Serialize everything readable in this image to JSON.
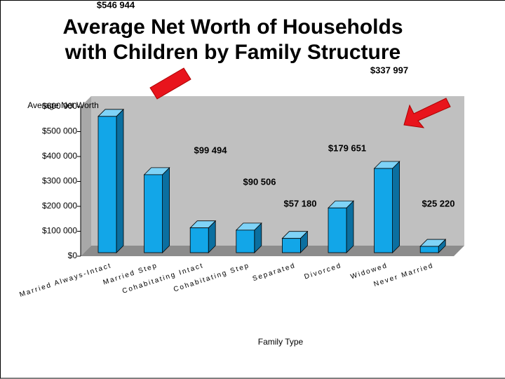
{
  "chart_data": {
    "type": "bar3d",
    "title": [
      "Average Net Worth of Households",
      "with Children by Family Structure"
    ],
    "y_label": "Average Net Worth",
    "x_label": "Family Type",
    "categories": [
      "Married Always-Intact",
      "Married Step",
      "Cohabitating Intact",
      "Cohabitating Step",
      "Separated",
      "Divorced",
      "Widowed",
      "Never Married"
    ],
    "values": [
      546944,
      313000,
      99494,
      90506,
      57180,
      179651,
      337997,
      25220
    ],
    "value_labels": [
      "$546 944",
      null,
      "$99 494",
      "$90 506",
      "$57 180",
      "$179 651",
      "$337 997",
      "$25 220"
    ],
    "color": "#12a6e8",
    "ylim": [
      0,
      600000
    ],
    "yticks": [
      {
        "value": 0,
        "label": "$0"
      },
      {
        "value": 100000,
        "label": "$100 000"
      },
      {
        "value": 200000,
        "label": "$200 000"
      },
      {
        "value": 300000,
        "label": "$300 000"
      },
      {
        "value": 400000,
        "label": "$400 000"
      },
      {
        "value": 500000,
        "label": "$500 000"
      },
      {
        "value": 600000,
        "label": "$600 000"
      }
    ]
  }
}
